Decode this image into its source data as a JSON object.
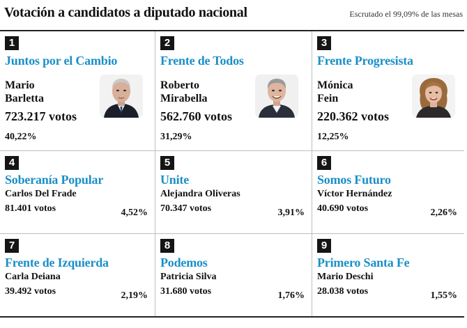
{
  "header": {
    "title": "Votación a candidatos a diputado nacional",
    "subtitle": "Escrutado el 99,09% de las mesas"
  },
  "top_cards": [
    {
      "rank": "1",
      "party": "Juntos por el Cambio",
      "first_name": "Mario",
      "last_name": "Barletta",
      "votes": "723.217 votos",
      "percent": "40,22%"
    },
    {
      "rank": "2",
      "party": "Frente de Todos",
      "first_name": "Roberto",
      "last_name": "Mirabella",
      "votes": "562.760 votos",
      "percent": "31,29%"
    },
    {
      "rank": "3",
      "party": "Frente Progresista",
      "first_name": "Mónica",
      "last_name": "Fein",
      "votes": "220.362 votos",
      "percent": "12,25%"
    }
  ],
  "cards": [
    {
      "rank": "4",
      "party": "Soberanía Popular",
      "candidate": "Carlos Del Frade",
      "votes": "81.401 votos",
      "percent": "4,52%"
    },
    {
      "rank": "5",
      "party": "Unite",
      "candidate": "Alejandra Oliveras",
      "votes": "70.347 votos",
      "percent": "3,91%"
    },
    {
      "rank": "6",
      "party": "Somos Futuro",
      "candidate": "Víctor Hernández",
      "votes": "40.690 votos",
      "percent": "2,26%"
    },
    {
      "rank": "7",
      "party": "Frente de Izquierda",
      "candidate": "Carla Deiana",
      "votes": "39.492 votos",
      "percent": "2,19%"
    },
    {
      "rank": "8",
      "party": "Podemos",
      "candidate": "Patricia Silva",
      "votes": "31.680 votos",
      "percent": "1,76%"
    },
    {
      "rank": "9",
      "party": "Primero Santa Fe",
      "candidate": "Mario Deschi",
      "votes": "28.038 votos",
      "percent": "1,55%"
    }
  ],
  "colors": {
    "party": "#1a8fc7",
    "badge": "#151515",
    "rule": "#222222"
  }
}
